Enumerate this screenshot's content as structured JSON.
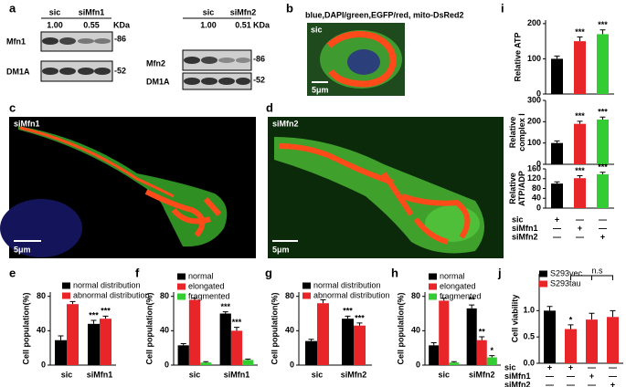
{
  "panel_letters": [
    "a",
    "b",
    "c",
    "d",
    "e",
    "f",
    "g",
    "h",
    "i",
    "j"
  ],
  "blots": [
    {
      "conditions": [
        "sic",
        "siMfn1"
      ],
      "ratios": [
        "1.00",
        "0.55"
      ],
      "unit": "KDa",
      "rows": [
        {
          "protein": "Mfn1",
          "marker": "-86"
        },
        {
          "protein": "DM1A",
          "marker": "-52"
        }
      ]
    },
    {
      "conditions": [
        "sic",
        "siMfn2"
      ],
      "ratios": [
        "1.00",
        "0.51"
      ],
      "unit": "KDa",
      "rows": [
        {
          "protein": "Mfn2",
          "marker": "-86"
        },
        {
          "protein": "DM1A",
          "marker": "-52"
        }
      ]
    }
  ],
  "micrographs": [
    {
      "caption": "blue,DAPI/green,EGFP/red, mito-DsRed2",
      "label": "sic",
      "scale_bar": "5μm"
    },
    {
      "label": "siMfn1",
      "scale_bar": "5μm"
    },
    {
      "label": "siMfn2",
      "scale_bar": "5μm"
    }
  ],
  "chart_data": [
    {
      "type": "bar",
      "y_label": "Cell population(%)",
      "categories": [
        "sic",
        "siMfn1"
      ],
      "ylim": [
        0,
        85
      ],
      "yticks": [
        0,
        40,
        80
      ],
      "series": [
        {
          "name": "normal distribution",
          "color": "#000000",
          "values": [
            29,
            48
          ],
          "errors": [
            5,
            4
          ],
          "significance": [
            null,
            "***"
          ]
        },
        {
          "name": "abnormal distribution",
          "color": "#e8262a",
          "values": [
            71,
            54
          ],
          "errors": [
            3,
            3
          ],
          "significance": [
            null,
            "***"
          ]
        }
      ]
    },
    {
      "type": "bar",
      "y_label": "Cell population(%)",
      "categories": [
        "sic",
        "siMfn1"
      ],
      "ylim": [
        0,
        85
      ],
      "yticks": [
        0,
        40,
        80
      ],
      "series": [
        {
          "name": "normal",
          "color": "#000000",
          "values": [
            23,
            60
          ],
          "errors": [
            2,
            2
          ],
          "significance": [
            null,
            "***"
          ]
        },
        {
          "name": "elongated",
          "color": "#e8262a",
          "values": [
            76,
            40
          ],
          "errors": [
            2,
            4
          ],
          "significance": [
            null,
            "***"
          ]
        },
        {
          "name": "fragmented",
          "color": "#33cc33",
          "values": [
            3,
            6
          ],
          "errors": [
            1,
            1
          ],
          "significance": [
            null,
            null
          ]
        }
      ]
    },
    {
      "type": "bar",
      "y_label": "Cell population(%)",
      "categories": [
        "sic",
        "siMfn2"
      ],
      "ylim": [
        0,
        85
      ],
      "yticks": [
        0,
        40,
        80
      ],
      "series": [
        {
          "name": "normal distribution",
          "color": "#000000",
          "values": [
            28,
            54
          ],
          "errors": [
            2,
            3
          ],
          "significance": [
            null,
            "***"
          ]
        },
        {
          "name": "abnormal distribution",
          "color": "#e8262a",
          "values": [
            72,
            46
          ],
          "errors": [
            4,
            3
          ],
          "significance": [
            null,
            "***"
          ]
        }
      ]
    },
    {
      "type": "bar",
      "y_label": "Cell population(%)",
      "categories": [
        "sic",
        "siMfn2"
      ],
      "ylim": [
        0,
        85
      ],
      "yticks": [
        0,
        40,
        80
      ],
      "series": [
        {
          "name": "normal",
          "color": "#000000",
          "values": [
            23,
            66
          ],
          "errors": [
            3,
            4
          ],
          "significance": [
            null,
            "**"
          ]
        },
        {
          "name": "elongated",
          "color": "#e8262a",
          "values": [
            75,
            29
          ],
          "errors": [
            3,
            4
          ],
          "significance": [
            null,
            "**"
          ]
        },
        {
          "name": "fragmented",
          "color": "#33cc33",
          "values": [
            3,
            9
          ],
          "errors": [
            1,
            2
          ],
          "significance": [
            null,
            "*"
          ]
        }
      ]
    },
    {
      "type": "bar",
      "y_label": "Relative ATP",
      "categories": [
        null,
        null,
        null
      ],
      "ylim": [
        0,
        210
      ],
      "yticks": [
        0,
        100,
        200
      ],
      "values": [
        100,
        150,
        170
      ],
      "errors": [
        8,
        12,
        12
      ],
      "colors": [
        "#000000",
        "#e8262a",
        "#33cc33"
      ],
      "significance": [
        null,
        "***",
        "***"
      ]
    },
    {
      "type": "bar",
      "y_label": "Relative complex I",
      "categories": [
        null,
        null,
        null
      ],
      "ylim": [
        0,
        300
      ],
      "yticks": [
        0,
        100,
        200,
        300
      ],
      "values": [
        100,
        190,
        210
      ],
      "errors": [
        10,
        12,
        12
      ],
      "colors": [
        "#000000",
        "#e8262a",
        "#33cc33"
      ],
      "significance": [
        null,
        "***",
        "***"
      ]
    },
    {
      "type": "bar",
      "y_label": "Relative ATP/ADP",
      "categories": [
        null,
        null,
        null
      ],
      "ylim": [
        0,
        160
      ],
      "yticks": [
        0,
        40,
        80,
        120,
        160
      ],
      "values": [
        100,
        122,
        138
      ],
      "errors": [
        7,
        10,
        8
      ],
      "colors": [
        "#000000",
        "#e8262a",
        "#33cc33"
      ],
      "significance": [
        null,
        "***",
        "***"
      ]
    },
    {
      "type": "bar",
      "y_label": "Cell viability",
      "categories": [
        null,
        null,
        null,
        null
      ],
      "ylim": [
        0,
        1.7
      ],
      "yticks": [
        {
          "value": 0,
          "label": "0.0"
        },
        {
          "value": 0.5,
          "label": "0.5"
        },
        {
          "value": 1,
          "label": "1.0"
        }
      ],
      "annotations": [
        "n.s"
      ],
      "series": [
        {
          "name": "S293vec",
          "color": "#000000",
          "values": [
            1.0,
            null,
            null,
            null
          ],
          "errors": [
            0.08,
            null,
            null,
            null
          ],
          "significance": [
            null,
            null,
            null,
            null
          ]
        },
        {
          "name": "S293tau",
          "color": "#e8262a",
          "values": [
            null,
            0.65,
            0.83,
            0.88
          ],
          "errors": [
            null,
            0.08,
            0.12,
            0.12
          ],
          "significance": [
            null,
            "*",
            null,
            null
          ]
        }
      ]
    }
  ],
  "condition_tables": [
    {
      "rows": [
        {
          "name": "sic",
          "signs": [
            "+",
            "—",
            "—"
          ]
        },
        {
          "name": "siMfn1",
          "signs": [
            "—",
            "+",
            "—"
          ]
        },
        {
          "name": "siMfn2",
          "signs": [
            "—",
            "—",
            "+"
          ]
        }
      ]
    },
    {
      "rows": [
        {
          "name": "sic",
          "signs": [
            "+",
            "+",
            "—",
            "—"
          ]
        },
        {
          "name": "siMfn1",
          "signs": [
            "—",
            "—",
            "+",
            "—"
          ]
        },
        {
          "name": "siMfn2",
          "signs": [
            "—",
            "—",
            "—",
            "+"
          ]
        }
      ]
    }
  ]
}
